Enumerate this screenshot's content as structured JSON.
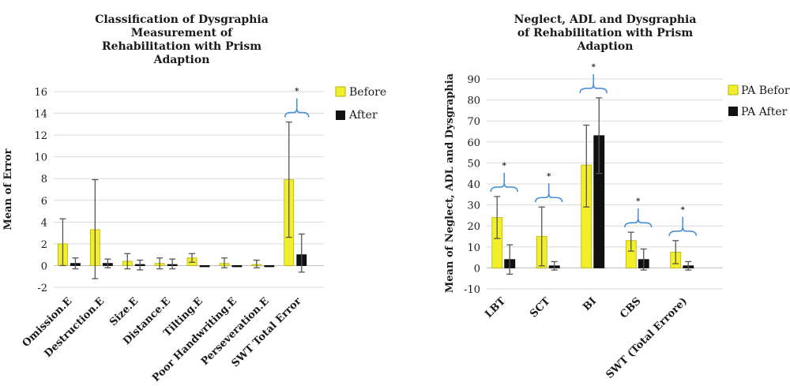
{
  "colors": {
    "before_fill": "#f2ee2a",
    "before_edge": "#b8b200",
    "after_fill": "#111111",
    "grid": "#d9d9d9",
    "errorbar": "#555555",
    "brace": "#4a90d9"
  },
  "chart_data": [
    {
      "type": "bar",
      "title_lines": [
        "Classification of Dysgraphia",
        "Measurement of",
        "Rehabilitation with Prism",
        "Adaption"
      ],
      "ylabel": "Mean of Error",
      "xlabel": "",
      "ylim": [
        -2,
        16
      ],
      "yticks": [
        "-2",
        "0",
        "2",
        "4",
        "6",
        "8",
        "10",
        "12",
        "14",
        "16"
      ],
      "grid": true,
      "legend_position": "right",
      "categories": [
        "Omission.E",
        "Destruction.E",
        "Size.E",
        "Distance.E",
        "Tilting.E",
        "Poor Handwriting.E",
        "Perseveration.E",
        "SWT Total Error"
      ],
      "series": [
        {
          "name": "Before",
          "values": [
            2.0,
            3.3,
            0.4,
            0.2,
            0.7,
            0.2,
            0.1,
            7.9
          ],
          "err_high": [
            4.3,
            7.9,
            1.1,
            0.7,
            1.1,
            0.7,
            0.5,
            13.2
          ],
          "err_low": [
            0.0,
            -1.2,
            -0.3,
            -0.3,
            0.3,
            -0.2,
            -0.2,
            2.6
          ]
        },
        {
          "name": "After",
          "values": [
            0.2,
            0.2,
            0.1,
            0.1,
            0.0,
            0.0,
            0.0,
            1.0
          ],
          "err_high": [
            0.7,
            0.6,
            0.5,
            0.6,
            0.0,
            0.0,
            0.0,
            2.9
          ],
          "err_low": [
            -0.3,
            -0.2,
            -0.4,
            -0.3,
            0.0,
            0.0,
            0.0,
            -0.6
          ]
        }
      ],
      "significance": [
        {
          "category": "SWT Total Error",
          "marker": "*"
        }
      ]
    },
    {
      "type": "bar",
      "title_lines": [
        "Neglect, ADL and Dysgraphia",
        "of Rehabilitation with Prism",
        "Adaption"
      ],
      "ylabel": "Mean of Neglect, ADL and Dysgraphia",
      "xlabel": "",
      "ylim": [
        -10,
        90
      ],
      "yticks": [
        "-10",
        "0",
        "10",
        "20",
        "30",
        "40",
        "50",
        "60",
        "70",
        "80",
        "90"
      ],
      "grid": true,
      "legend_position": "right",
      "categories": [
        "LBT",
        "SCT",
        "BI",
        "CBS",
        "SWT (Total Errore)"
      ],
      "series": [
        {
          "name": "PA Before",
          "values": [
            24,
            15,
            49,
            13,
            7.5
          ],
          "err_high": [
            34,
            29,
            68,
            17,
            13
          ],
          "err_low": [
            14,
            1,
            29,
            8,
            2
          ]
        },
        {
          "name": "PA After",
          "values": [
            4,
            1,
            63,
            4,
            1
          ],
          "err_high": [
            11,
            3,
            81,
            9,
            3
          ],
          "err_low": [
            -3,
            -1,
            45,
            -1,
            -1
          ]
        }
      ],
      "significance": [
        {
          "category": "LBT",
          "marker": "*"
        },
        {
          "category": "SCT",
          "marker": "*"
        },
        {
          "category": "BI",
          "marker": "*"
        },
        {
          "category": "CBS",
          "marker": "*"
        },
        {
          "category": "SWT (Total Errore)",
          "marker": "*"
        }
      ]
    }
  ]
}
